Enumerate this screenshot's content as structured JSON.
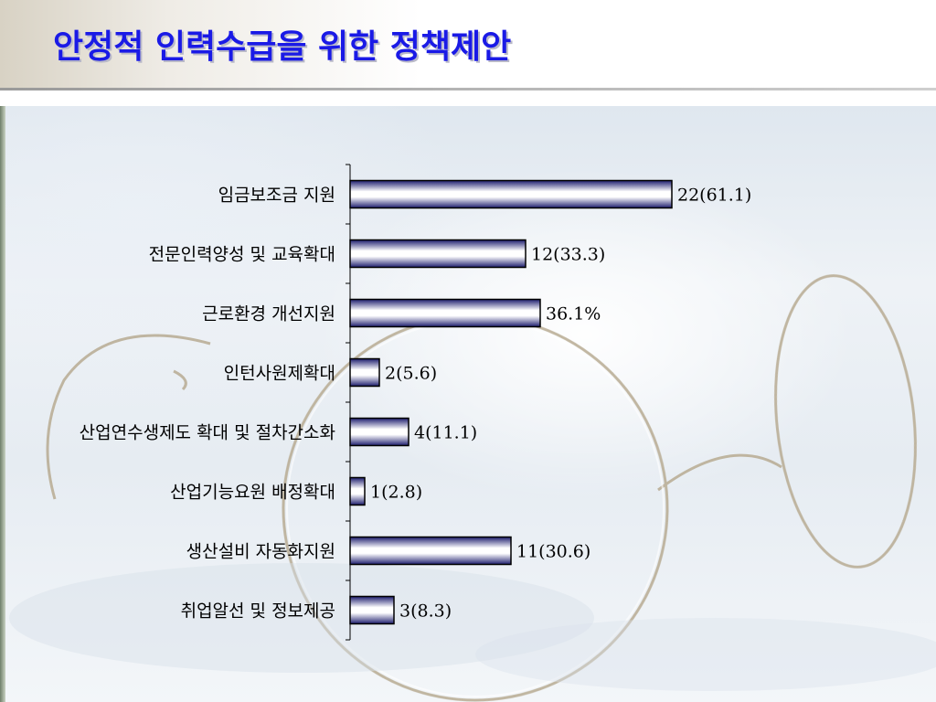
{
  "slide": {
    "title": "안정적 인력수급을 위한 정책제안"
  },
  "chart_data": {
    "type": "bar",
    "orientation": "horizontal",
    "categories": [
      "임금보조금 지원",
      "전문인력양성 및 교육확대",
      "근로환경 개선지원",
      "인턴사원제확대",
      "산업연수생제도 확대 및 절차간소화",
      "산업기능요원 배정확대",
      "생산설비 자동화지원",
      "취업알선 및 정보제공"
    ],
    "values": [
      22,
      12,
      13,
      2,
      4,
      1,
      11,
      3
    ],
    "data_labels": [
      "22(61.1)",
      "12(33.3)",
      "36.1%",
      "2(5.6)",
      "4(11.1)",
      "1(2.8)",
      "11(30.6)",
      "3(8.3)"
    ],
    "xlim": [
      0,
      22
    ],
    "grid": false,
    "bar_color": "#1c1c6e"
  }
}
